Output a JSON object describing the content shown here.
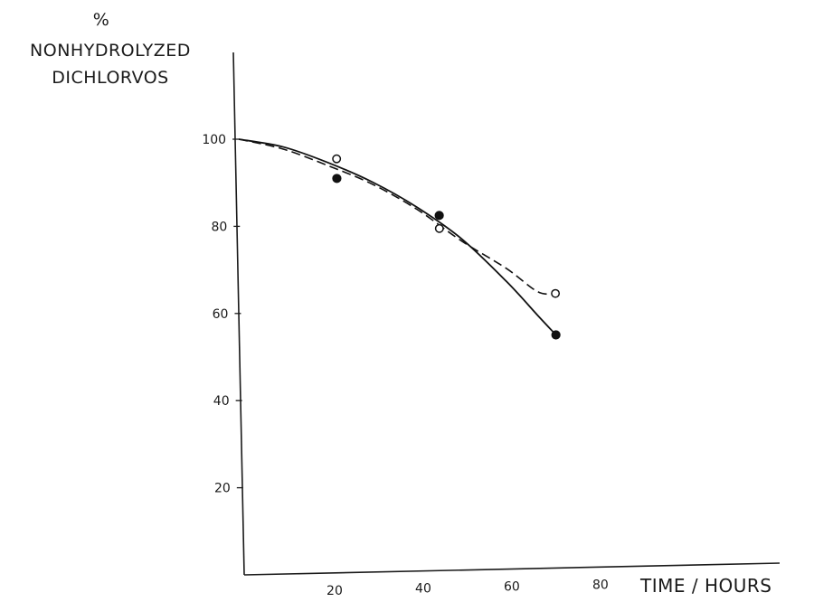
{
  "chart_data": {
    "type": "line",
    "title": "",
    "ylabel_unit": "%",
    "ylabel_lines": [
      "NONHYDROLYZED",
      "DICHLORVOS"
    ],
    "xlabel": "TIME / HOURS",
    "xlim": [
      0,
      90
    ],
    "ylim": [
      0,
      110
    ],
    "x_ticks": [
      20,
      40,
      60,
      80
    ],
    "y_ticks": [
      20,
      40,
      60,
      80,
      100
    ],
    "grid": false,
    "series": [
      {
        "style": "solid",
        "marker": "filled-circle",
        "points": [
          [
            0,
            100
          ],
          [
            22,
            90.5
          ],
          [
            45,
            81.5
          ],
          [
            71,
            53.5
          ]
        ],
        "curve": [
          [
            0,
            100
          ],
          [
            10,
            98
          ],
          [
            20,
            94.2
          ],
          [
            30,
            89.5
          ],
          [
            40,
            83.5
          ],
          [
            50,
            76
          ],
          [
            60,
            66
          ],
          [
            67,
            58
          ],
          [
            71,
            53.5
          ]
        ]
      },
      {
        "style": "dashed",
        "marker": "open-circle",
        "points": [
          [
            0,
            100
          ],
          [
            22,
            95
          ],
          [
            45,
            78.5
          ],
          [
            71,
            63
          ]
        ],
        "curve": [
          [
            0,
            100
          ],
          [
            10,
            97.5
          ],
          [
            20,
            93.5
          ],
          [
            30,
            89
          ],
          [
            40,
            83
          ],
          [
            50,
            75.5
          ],
          [
            60,
            69
          ],
          [
            67,
            63.5
          ],
          [
            71,
            63
          ]
        ]
      }
    ]
  }
}
